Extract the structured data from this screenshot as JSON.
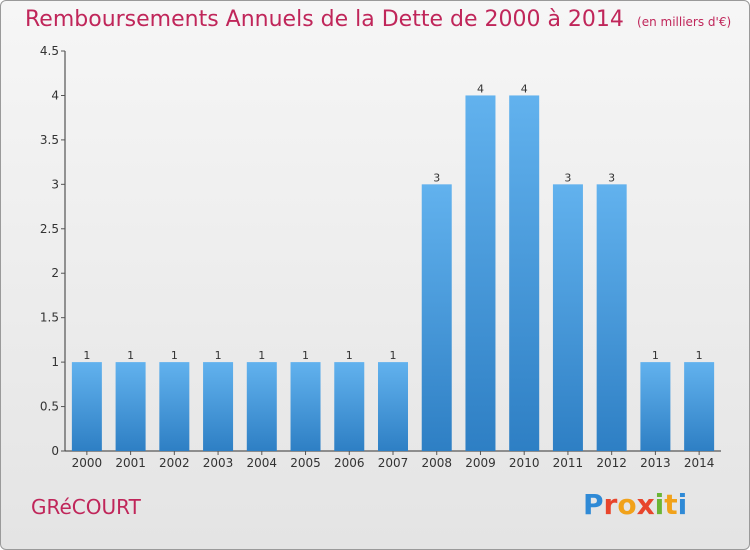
{
  "title": "Remboursements Annuels de la Dette de 2000 à 2014",
  "unit": "(en milliers d'€)",
  "commune": "GRéCOURT",
  "brand": [
    "P",
    "r",
    "o",
    "x",
    "i",
    "t",
    "i"
  ],
  "colors": {
    "accent": "#c0265a",
    "bar_top": "#62b2ee",
    "bar_bottom": "#2e7fc4",
    "axis": "#333333",
    "grid_tick": "#555555"
  },
  "chart_data": {
    "type": "bar",
    "title": "Remboursements Annuels de la Dette de 2000 à 2014",
    "categories": [
      "2000",
      "2001",
      "2002",
      "2003",
      "2004",
      "2005",
      "2006",
      "2007",
      "2008",
      "2009",
      "2010",
      "2011",
      "2012",
      "2013",
      "2014"
    ],
    "values": [
      1,
      1,
      1,
      1,
      1,
      1,
      1,
      1,
      3,
      4,
      4,
      3,
      3,
      1,
      1
    ],
    "value_labels": [
      "1",
      "1",
      "1",
      "1",
      "1",
      "1",
      "1",
      "1",
      "3",
      "4",
      "4",
      "3",
      "3",
      "1",
      "1"
    ],
    "ylim": [
      0,
      4.5
    ],
    "yticks": [
      "0",
      "0.5",
      "1",
      "1.5",
      "2",
      "2.5",
      "3",
      "3.5",
      "4",
      "4.5"
    ],
    "grid": false,
    "legend": "none"
  }
}
